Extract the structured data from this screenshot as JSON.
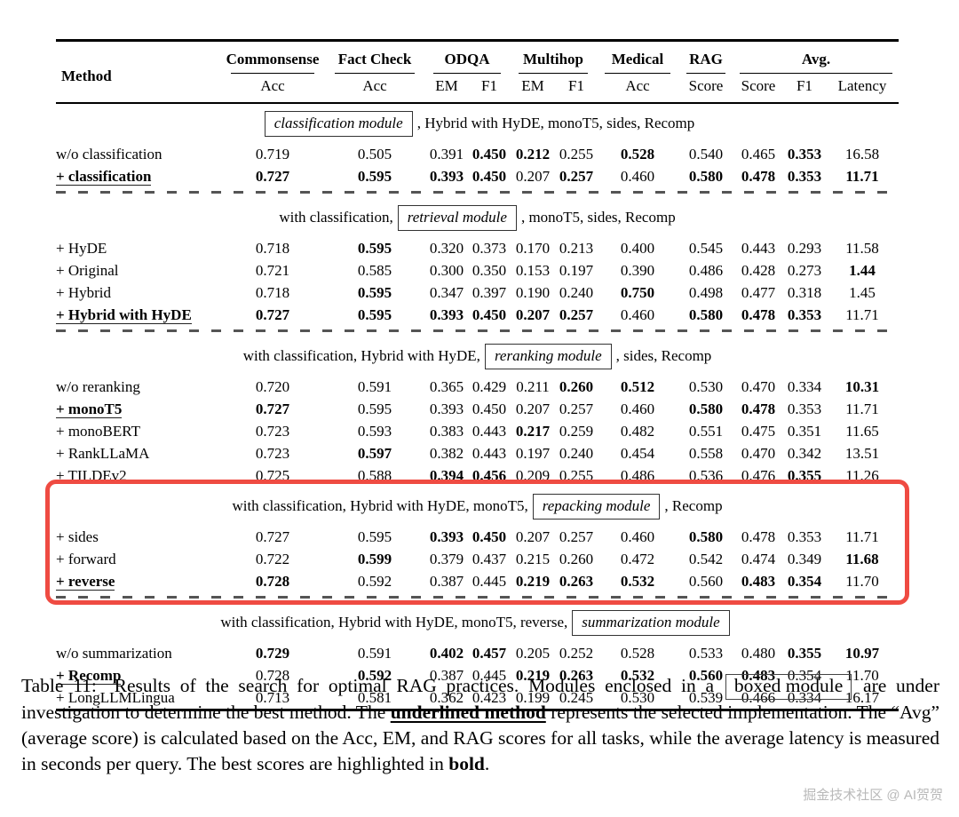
{
  "table": {
    "header": {
      "method": "Method",
      "groups": [
        {
          "label": "Commonsense",
          "cols": [
            "Acc"
          ]
        },
        {
          "label": "Fact Check",
          "cols": [
            "Acc"
          ]
        },
        {
          "label": "ODQA",
          "cols": [
            "EM",
            "F1"
          ]
        },
        {
          "label": "Multihop",
          "cols": [
            "EM",
            "F1"
          ]
        },
        {
          "label": "Medical",
          "cols": [
            "Acc"
          ]
        },
        {
          "label": "RAG",
          "cols": [
            "Score"
          ]
        },
        {
          "label": "Avg.",
          "cols": [
            "Score",
            "F1",
            "Latency"
          ]
        }
      ]
    },
    "sections": [
      {
        "pre": "",
        "module": "classification module",
        "post": ", Hybrid with HyDE, monoT5, sides, Recomp",
        "highlighted": false,
        "dashed_after": true,
        "rows": [
          {
            "method": "w/o classification",
            "selected": false,
            "values": [
              "0.719",
              "0.505",
              "0.391",
              "0.450",
              "0.212",
              "0.255",
              "0.528",
              "0.540",
              "0.465",
              "0.353",
              "16.58"
            ],
            "bold": [
              0,
              0,
              0,
              1,
              1,
              0,
              1,
              0,
              0,
              1,
              0
            ]
          },
          {
            "method": "+ classification",
            "selected": true,
            "values": [
              "0.727",
              "0.595",
              "0.393",
              "0.450",
              "0.207",
              "0.257",
              "0.460",
              "0.580",
              "0.478",
              "0.353",
              "11.71"
            ],
            "bold": [
              1,
              1,
              1,
              1,
              0,
              1,
              0,
              1,
              1,
              1,
              1
            ]
          }
        ]
      },
      {
        "pre": "with classification,",
        "module": "retrieval module",
        "post": ", monoT5, sides, Recomp",
        "highlighted": false,
        "dashed_after": true,
        "rows": [
          {
            "method": "+ HyDE",
            "selected": false,
            "values": [
              "0.718",
              "0.595",
              "0.320",
              "0.373",
              "0.170",
              "0.213",
              "0.400",
              "0.545",
              "0.443",
              "0.293",
              "11.58"
            ],
            "bold": [
              0,
              1,
              0,
              0,
              0,
              0,
              0,
              0,
              0,
              0,
              0
            ]
          },
          {
            "method": "+ Original",
            "selected": false,
            "values": [
              "0.721",
              "0.585",
              "0.300",
              "0.350",
              "0.153",
              "0.197",
              "0.390",
              "0.486",
              "0.428",
              "0.273",
              "1.44"
            ],
            "bold": [
              0,
              0,
              0,
              0,
              0,
              0,
              0,
              0,
              0,
              0,
              1
            ]
          },
          {
            "method": "+ Hybrid",
            "selected": false,
            "values": [
              "0.718",
              "0.595",
              "0.347",
              "0.397",
              "0.190",
              "0.240",
              "0.750",
              "0.498",
              "0.477",
              "0.318",
              "1.45"
            ],
            "bold": [
              0,
              1,
              0,
              0,
              0,
              0,
              1,
              0,
              0,
              0,
              0
            ]
          },
          {
            "method": "+ Hybrid with HyDE",
            "selected": true,
            "values": [
              "0.727",
              "0.595",
              "0.393",
              "0.450",
              "0.207",
              "0.257",
              "0.460",
              "0.580",
              "0.478",
              "0.353",
              "11.71"
            ],
            "bold": [
              1,
              1,
              1,
              1,
              1,
              1,
              0,
              1,
              1,
              1,
              0
            ]
          }
        ]
      },
      {
        "pre": "with classification, Hybrid with HyDE,",
        "module": "reranking module",
        "post": ", sides, Recomp",
        "highlighted": false,
        "dashed_after": false,
        "rows": [
          {
            "method": "w/o reranking",
            "selected": false,
            "values": [
              "0.720",
              "0.591",
              "0.365",
              "0.429",
              "0.211",
              "0.260",
              "0.512",
              "0.530",
              "0.470",
              "0.334",
              "10.31"
            ],
            "bold": [
              0,
              0,
              0,
              0,
              0,
              1,
              1,
              0,
              0,
              0,
              1
            ]
          },
          {
            "method": "+ monoT5",
            "selected": true,
            "values": [
              "0.727",
              "0.595",
              "0.393",
              "0.450",
              "0.207",
              "0.257",
              "0.460",
              "0.580",
              "0.478",
              "0.353",
              "11.71"
            ],
            "bold": [
              1,
              0,
              0,
              0,
              0,
              0,
              0,
              1,
              1,
              0,
              0
            ]
          },
          {
            "method": "+ monoBERT",
            "selected": false,
            "values": [
              "0.723",
              "0.593",
              "0.383",
              "0.443",
              "0.217",
              "0.259",
              "0.482",
              "0.551",
              "0.475",
              "0.351",
              "11.65"
            ],
            "bold": [
              0,
              0,
              0,
              0,
              1,
              0,
              0,
              0,
              0,
              0,
              0
            ]
          },
          {
            "method": "+ RankLLaMA",
            "selected": false,
            "values": [
              "0.723",
              "0.597",
              "0.382",
              "0.443",
              "0.197",
              "0.240",
              "0.454",
              "0.558",
              "0.470",
              "0.342",
              "13.51"
            ],
            "bold": [
              0,
              1,
              0,
              0,
              0,
              0,
              0,
              0,
              0,
              0,
              0
            ]
          },
          {
            "method": "+ TILDEv2",
            "selected": false,
            "values": [
              "0.725",
              "0.588",
              "0.394",
              "0.456",
              "0.209",
              "0.255",
              "0.486",
              "0.536",
              "0.476",
              "0.355",
              "11.26"
            ],
            "bold": [
              0,
              0,
              1,
              1,
              0,
              0,
              0,
              0,
              0,
              1,
              0
            ]
          }
        ]
      },
      {
        "pre": "with classification, Hybrid with HyDE, monoT5,",
        "module": "repacking module",
        "post": ", Recomp",
        "highlighted": true,
        "dashed_after": true,
        "rows": [
          {
            "method": "+ sides",
            "selected": false,
            "values": [
              "0.727",
              "0.595",
              "0.393",
              "0.450",
              "0.207",
              "0.257",
              "0.460",
              "0.580",
              "0.478",
              "0.353",
              "11.71"
            ],
            "bold": [
              0,
              0,
              1,
              1,
              0,
              0,
              0,
              1,
              0,
              0,
              0
            ]
          },
          {
            "method": "+ forward",
            "selected": false,
            "values": [
              "0.722",
              "0.599",
              "0.379",
              "0.437",
              "0.215",
              "0.260",
              "0.472",
              "0.542",
              "0.474",
              "0.349",
              "11.68"
            ],
            "bold": [
              0,
              1,
              0,
              0,
              0,
              0,
              0,
              0,
              0,
              0,
              1
            ]
          },
          {
            "method": "+ reverse",
            "selected": true,
            "values": [
              "0.728",
              "0.592",
              "0.387",
              "0.445",
              "0.219",
              "0.263",
              "0.532",
              "0.560",
              "0.483",
              "0.354",
              "11.70"
            ],
            "bold": [
              1,
              0,
              0,
              0,
              1,
              1,
              1,
              0,
              1,
              1,
              0
            ]
          }
        ]
      },
      {
        "pre": "with classification, Hybrid with HyDE, monoT5, reverse,",
        "module": "summarization module",
        "post": "",
        "highlighted": false,
        "dashed_after": false,
        "rows": [
          {
            "method": "w/o summarization",
            "selected": false,
            "values": [
              "0.729",
              "0.591",
              "0.402",
              "0.457",
              "0.205",
              "0.252",
              "0.528",
              "0.533",
              "0.480",
              "0.355",
              "10.97"
            ],
            "bold": [
              1,
              0,
              1,
              1,
              0,
              0,
              0,
              0,
              0,
              1,
              1
            ]
          },
          {
            "method": "+ Recomp",
            "selected": true,
            "values": [
              "0.728",
              "0.592",
              "0.387",
              "0.445",
              "0.219",
              "0.263",
              "0.532",
              "0.560",
              "0.483",
              "0.354",
              "11.70"
            ],
            "bold": [
              0,
              1,
              0,
              0,
              1,
              1,
              1,
              1,
              1,
              0,
              0
            ]
          },
          {
            "method": "+ LongLLMLingua",
            "selected": false,
            "values": [
              "0.713",
              "0.581",
              "0.362",
              "0.423",
              "0.199",
              "0.245",
              "0.530",
              "0.539",
              "0.466",
              "0.334",
              "16.17"
            ],
            "bold": [
              0,
              0,
              0,
              0,
              0,
              0,
              0,
              0,
              0,
              0,
              0
            ]
          }
        ]
      }
    ],
    "highlight_color": "#ef4b42"
  },
  "caption": {
    "label": "Table 11:",
    "seg1": "Results of the search for optimal RAG practices. Modules enclosed in a",
    "boxed": "boxed module",
    "seg2": "are under investigation to determine the best method. The",
    "underlined": "underlined method",
    "seg3": "represents the selected implementation. The “Avg” (average score) is calculated based on the Acc, EM, and RAG scores for all tasks, while the average latency is measured in seconds per query. The best scores are highlighted in",
    "bold_word": "bold",
    "seg4": "."
  },
  "watermark": "掘金技术社区 @ AI贺贺"
}
